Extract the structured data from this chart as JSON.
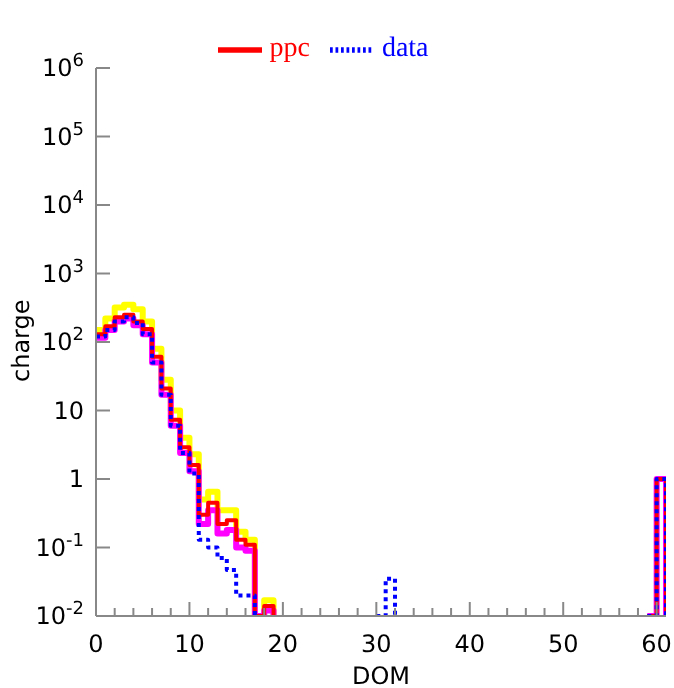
{
  "chart_data": {
    "type": "step",
    "xlabel": "DOM",
    "ylabel": "charge",
    "log": "y",
    "legend": "top",
    "grid": false,
    "x": [
      0,
      1,
      2,
      3,
      4,
      5,
      6,
      7,
      8,
      9,
      10,
      11,
      12,
      13,
      14,
      15,
      16,
      17,
      18,
      19,
      20,
      21,
      22,
      23,
      24,
      25,
      26,
      27,
      28,
      29,
      30,
      31,
      32,
      33,
      34,
      35,
      36,
      37,
      38,
      39,
      40,
      41,
      42,
      43,
      44,
      45,
      46,
      47,
      48,
      49,
      50,
      51,
      52,
      53,
      54,
      55,
      56,
      57,
      58,
      59,
      60,
      61
    ],
    "xlim": [
      0,
      61
    ],
    "xticks": [
      0,
      {
        "value": 2,
        "label": null
      },
      {
        "value": 4,
        "label": null
      },
      {
        "value": 6,
        "label": null
      },
      {
        "value": 8,
        "label": null
      },
      10,
      {
        "value": 12,
        "label": null
      },
      {
        "value": 14,
        "label": null
      },
      {
        "value": 16,
        "label": null
      },
      {
        "value": 18,
        "label": null
      },
      20,
      {
        "value": 22,
        "label": null
      },
      {
        "value": 24,
        "label": null
      },
      {
        "value": 26,
        "label": null
      },
      {
        "value": 28,
        "label": null
      },
      30,
      {
        "value": 32,
        "label": null
      },
      {
        "value": 34,
        "label": null
      },
      {
        "value": 36,
        "label": null
      },
      {
        "value": 38,
        "label": null
      },
      40,
      {
        "value": 42,
        "label": null
      },
      {
        "value": 44,
        "label": null
      },
      {
        "value": 46,
        "label": null
      },
      {
        "value": 48,
        "label": null
      },
      50,
      {
        "value": 52,
        "label": null
      },
      {
        "value": 54,
        "label": null
      },
      {
        "value": 56,
        "label": null
      },
      {
        "value": 58,
        "label": null
      },
      60
    ],
    "ylim": [
      0.01,
      1000000
    ],
    "yticks": [
      {
        "value": 0.01,
        "label": "10$^{-2}$"
      },
      {
        "value": 0.1,
        "label": "10$^{-1}$"
      },
      1,
      10,
      {
        "value": 100,
        "label": "10$^{2}$"
      },
      {
        "value": 1000,
        "label": "10$^{3}$"
      },
      {
        "value": 10000,
        "label": "10$^{4}$"
      },
      {
        "value": 100000,
        "label": "10$^{5}$"
      },
      {
        "value": 1000000,
        "label": "10$^{6}$"
      }
    ],
    "series": [
      {
        "color": "#ffff00",
        "line_style": "solid",
        "values": [
          150,
          220,
          320,
          350,
          300,
          200,
          80,
          28,
          10,
          4,
          2.3,
          0.5,
          0.65,
          0.35,
          0.35,
          0.17,
          0.13,
          0.01,
          0.017,
          0.01,
          null,
          null,
          null,
          null,
          null,
          null,
          null,
          null,
          null,
          null,
          null,
          null,
          null,
          null,
          null,
          null,
          null,
          null,
          null,
          null,
          null,
          null,
          null,
          null,
          null,
          null,
          null,
          null,
          null,
          null,
          null,
          null,
          null,
          null,
          null,
          null,
          null,
          null,
          null,
          null,
          null,
          null
        ]
      },
      {
        "color": "#ff00ff",
        "line_style": "solid",
        "values": [
          115,
          150,
          200,
          220,
          175,
          130,
          50,
          17,
          6,
          2.4,
          1.3,
          0.22,
          0.35,
          0.16,
          0.18,
          0.1,
          0.09,
          0.01,
          0.012,
          0.01,
          null,
          null,
          null,
          null,
          null,
          null,
          null,
          null,
          null,
          null,
          null,
          null,
          null,
          null,
          null,
          null,
          null,
          null,
          null,
          null,
          null,
          null,
          null,
          null,
          null,
          null,
          null,
          null,
          null,
          null,
          null,
          null,
          null,
          null,
          null,
          null,
          null,
          null,
          null,
          0.01,
          1,
          0.01
        ]
      },
      {
        "name": "ppc",
        "color": "#ff0000",
        "line_style": "solid",
        "values": [
          130,
          170,
          230,
          250,
          200,
          155,
          61,
          21,
          7.3,
          2.9,
          1.6,
          0.3,
          0.45,
          0.22,
          0.25,
          0.13,
          0.11,
          0.01,
          0.014,
          0.01,
          null,
          null,
          null,
          null,
          null,
          null,
          null,
          null,
          null,
          null,
          null,
          null,
          null,
          null,
          null,
          null,
          null,
          null,
          null,
          null,
          null,
          null,
          null,
          null,
          null,
          null,
          null,
          null,
          null,
          null,
          null,
          null,
          null,
          null,
          null,
          null,
          null,
          null,
          null,
          0.01,
          1,
          0.01
        ]
      },
      {
        "name": "data",
        "color": "#0000ff",
        "line_style": "dotted",
        "values": [
          120,
          150,
          200,
          230,
          190,
          130,
          50,
          17,
          6,
          2.4,
          1.2,
          0.13,
          0.1,
          0.07,
          0.047,
          0.02,
          0.02,
          0.01,
          null,
          null,
          null,
          null,
          null,
          null,
          null,
          null,
          null,
          null,
          null,
          null,
          0.01,
          0.035,
          0.01,
          null,
          null,
          null,
          null,
          null,
          null,
          null,
          null,
          null,
          null,
          null,
          null,
          null,
          null,
          null,
          null,
          null,
          null,
          null,
          null,
          null,
          null,
          null,
          null,
          null,
          null,
          0.01,
          1,
          0.01
        ]
      }
    ]
  }
}
